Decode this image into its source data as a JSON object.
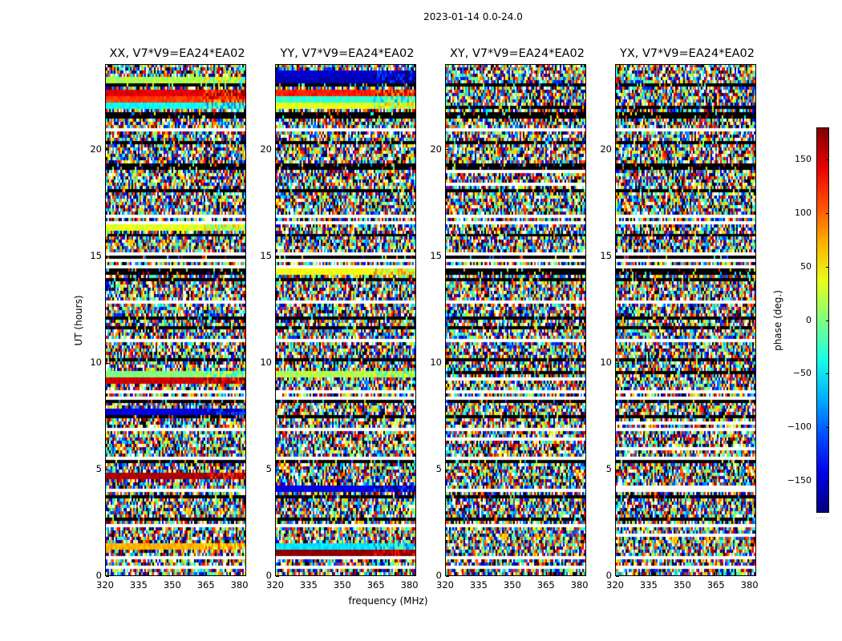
{
  "chart_data": {
    "type": "heatmap",
    "title": "2023-01-14 0.0-24.0",
    "xlabel": "frequency (MHz)",
    "ylabel": "UT (hours)",
    "xlim": [
      320,
      383
    ],
    "ylim": [
      0,
      24
    ],
    "xticks": [
      "320",
      "335",
      "350",
      "365",
      "380"
    ],
    "yticks": [
      "0",
      "5",
      "10",
      "15",
      "20"
    ],
    "panels": [
      {
        "title": "XX, V7*V9=EA24*EA02",
        "polarization": "XX"
      },
      {
        "title": "YY, V7*V9=EA24*EA02",
        "polarization": "YY"
      },
      {
        "title": "XY, V7*V9=EA24*EA02",
        "polarization": "XY"
      },
      {
        "title": "YX, V7*V9=EA24*EA02",
        "polarization": "YX"
      }
    ],
    "colorbar": {
      "label": "phase (deg.)",
      "range": [
        -180,
        180
      ],
      "ticks": [
        "150",
        "100",
        "50",
        "0",
        "−50",
        "−100",
        "−150"
      ],
      "colormap": "jet"
    }
  }
}
